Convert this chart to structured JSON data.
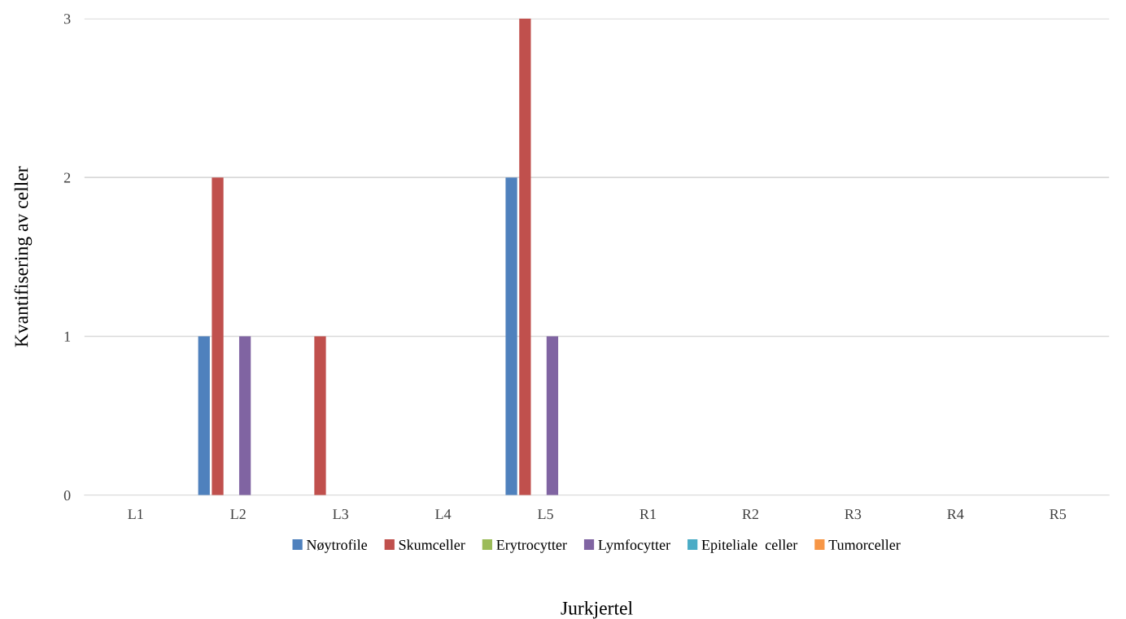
{
  "chart_data": {
    "type": "bar",
    "xlabel": "Jurkjertel",
    "ylabel": "Kvantifisering av celler",
    "categories": [
      "L1",
      "L2",
      "L3",
      "L4",
      "L5",
      "R1",
      "R2",
      "R3",
      "R4",
      "R5"
    ],
    "series": [
      {
        "name": "Nøytrofile",
        "color": "#4f81bd",
        "values": [
          0,
          1,
          0,
          0,
          2,
          0,
          0,
          0,
          0,
          0
        ]
      },
      {
        "name": "Skumceller",
        "color": "#c0504d",
        "values": [
          0,
          2,
          1,
          0,
          3,
          0,
          0,
          0,
          0,
          0
        ]
      },
      {
        "name": "Erytrocytter",
        "color": "#9bbb59",
        "values": [
          0,
          0,
          0,
          0,
          0,
          0,
          0,
          0,
          0,
          0
        ]
      },
      {
        "name": "Lymfocytter",
        "color": "#8064a2",
        "values": [
          0,
          1,
          0,
          0,
          1,
          0,
          0,
          0,
          0,
          0
        ]
      },
      {
        "name": "Epiteliale  celler",
        "color": "#4bacc6",
        "values": [
          0,
          0,
          0,
          0,
          0,
          0,
          0,
          0,
          0,
          0
        ]
      },
      {
        "name": "Tumorceller",
        "color": "#f79646",
        "values": [
          0,
          0,
          0,
          0,
          0,
          0,
          0,
          0,
          0,
          0
        ]
      }
    ],
    "ylim": [
      0,
      3
    ],
    "yticks": [
      0,
      1,
      2,
      3
    ],
    "grid": "y",
    "legend": "bottom"
  }
}
